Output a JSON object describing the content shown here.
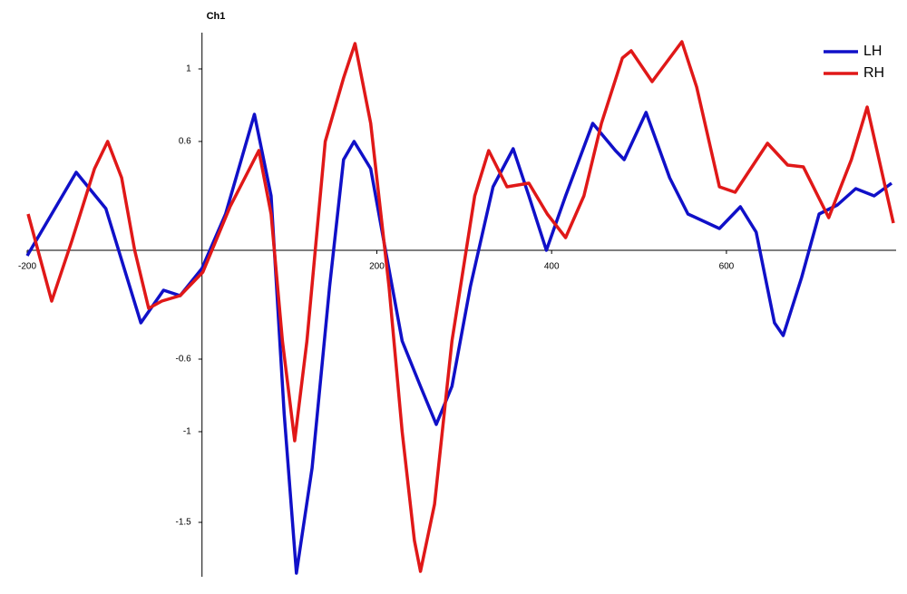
{
  "chart_data": {
    "type": "line",
    "y_label": "Ch1",
    "xlim": [
      -200,
      790
    ],
    "ylim": [
      -1.8,
      1.2
    ],
    "xticks": [
      -200,
      200,
      400,
      600
    ],
    "yticks": [
      1,
      0.6,
      -0.6,
      -1,
      -1.5
    ],
    "legend": "upper right",
    "series": [
      {
        "name": "LH",
        "color": "#1010c8",
        "x": [
          -200,
          -144,
          -110,
          -70,
          -44,
          -25,
          0,
          27,
          60,
          79,
          94,
          108,
          126,
          146,
          162,
          174,
          193,
          208,
          229,
          250,
          268,
          286,
          307,
          333,
          356,
          374,
          394,
          416,
          447,
          473,
          483,
          508,
          535,
          556,
          592,
          616,
          634,
          655,
          665,
          686,
          706,
          727,
          748,
          769,
          789
        ],
        "values": [
          -0.03,
          0.43,
          0.23,
          -0.4,
          -0.22,
          -0.25,
          -0.1,
          0.2,
          0.75,
          0.3,
          -0.9,
          -1.78,
          -1.2,
          -0.2,
          0.5,
          0.6,
          0.45,
          0.05,
          -0.5,
          -0.75,
          -0.96,
          -0.75,
          -0.2,
          0.35,
          0.56,
          0.3,
          0.0,
          0.3,
          0.7,
          0.55,
          0.5,
          0.76,
          0.4,
          0.2,
          0.12,
          0.24,
          0.1,
          -0.4,
          -0.47,
          -0.15,
          0.2,
          0.25,
          0.34,
          0.3,
          0.37
        ]
      },
      {
        "name": "RH",
        "color": "#e01818",
        "x": [
          -199,
          -172,
          -149,
          -123,
          -108,
          -92,
          -77,
          -61,
          -46,
          -25,
          1,
          32,
          65,
          79,
          92,
          106,
          120,
          141,
          162,
          175,
          193,
          214,
          229,
          243,
          250,
          266,
          286,
          312,
          328,
          349,
          374,
          395,
          416,
          437,
          457,
          481,
          491,
          515,
          549,
          566,
          592,
          610,
          647,
          670,
          688,
          717,
          743,
          761,
          791
        ],
        "values": [
          0.2,
          -0.28,
          0.05,
          0.45,
          0.6,
          0.4,
          0.0,
          -0.32,
          -0.28,
          -0.25,
          -0.12,
          0.24,
          0.55,
          0.2,
          -0.5,
          -1.05,
          -0.5,
          0.6,
          0.95,
          1.14,
          0.7,
          -0.2,
          -1.0,
          -1.6,
          -1.77,
          -1.4,
          -0.5,
          0.3,
          0.55,
          0.35,
          0.37,
          0.2,
          0.07,
          0.3,
          0.7,
          1.06,
          1.1,
          0.93,
          1.15,
          0.9,
          0.35,
          0.32,
          0.59,
          0.47,
          0.46,
          0.18,
          0.5,
          0.79,
          0.15
        ]
      }
    ]
  }
}
